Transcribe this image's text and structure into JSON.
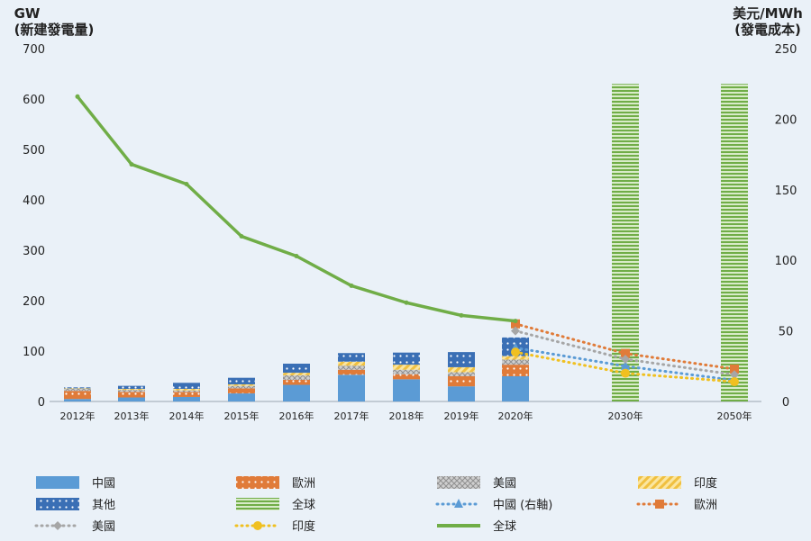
{
  "chart_data": {
    "type": "bar+line",
    "left_axis_title": [
      "GW",
      "(新建發電量)"
    ],
    "right_axis_title": [
      "美元/MWh",
      "(發電成本)"
    ],
    "left_ylim": [
      0,
      700
    ],
    "left_ticks": [
      0,
      100,
      200,
      300,
      400,
      500,
      600,
      700
    ],
    "right_ylim": [
      0,
      250
    ],
    "right_ticks": [
      0,
      50,
      100,
      150,
      200,
      250
    ],
    "categories": [
      "2012年",
      "2013年",
      "2014年",
      "2015年",
      "2016年",
      "2017年",
      "2018年",
      "2019年",
      "2020年",
      "2030年",
      "2050年"
    ],
    "stacked_bars": [
      {
        "name": "中國",
        "color": "#5b9bd5",
        "values": [
          5,
          8,
          9,
          16,
          33,
          53,
          44,
          30,
          50,
          null,
          null
        ]
      },
      {
        "name": "歐洲",
        "color": "#e07b39",
        "values": [
          16,
          11,
          10,
          10,
          10,
          10,
          10,
          20,
          23,
          null,
          null
        ]
      },
      {
        "name": "美國",
        "color": "#b0b0b0",
        "values": [
          4,
          4,
          3,
          5,
          9,
          8,
          9,
          8,
          10,
          null,
          null
        ]
      },
      {
        "name": "印度",
        "color": "#f0c040",
        "values": [
          1,
          2,
          3,
          3,
          5,
          8,
          10,
          10,
          7,
          null,
          null
        ]
      },
      {
        "name": "其他",
        "color": "#3a6fb5",
        "values": [
          2,
          6,
          12,
          13,
          18,
          17,
          24,
          30,
          37,
          null,
          null
        ]
      }
    ],
    "total_bars": {
      "name": "全球",
      "color": "#70ad47",
      "values": [
        null,
        null,
        null,
        null,
        null,
        null,
        null,
        null,
        null,
        630,
        630
      ]
    },
    "cost_lines": [
      {
        "name": "中國 (右軸)",
        "color": "#5b9bd5",
        "marker": "triangle",
        "values": [
          null,
          null,
          null,
          null,
          null,
          null,
          null,
          null,
          38,
          25,
          15
        ]
      },
      {
        "name": "歐洲",
        "color": "#e07b39",
        "marker": "square",
        "values": [
          null,
          null,
          null,
          null,
          null,
          null,
          null,
          null,
          55,
          34,
          23
        ]
      },
      {
        "name": "美國",
        "color": "#a6a6a6",
        "marker": "diamond",
        "values": [
          null,
          null,
          null,
          null,
          null,
          null,
          null,
          null,
          50,
          30,
          19
        ]
      },
      {
        "name": "印度",
        "color": "#f0c020",
        "marker": "circle",
        "values": [
          null,
          null,
          null,
          null,
          null,
          null,
          null,
          null,
          35,
          20,
          14
        ]
      },
      {
        "name": "全球",
        "color": "#70ad47",
        "marker": "none",
        "values": [
          216,
          168,
          154,
          117,
          103,
          82,
          70,
          61,
          57,
          null,
          null
        ]
      }
    ],
    "legend": [
      {
        "label": "中國",
        "swatch": "bar",
        "fill": "#5b9bd5",
        "pattern": "solid"
      },
      {
        "label": "歐洲",
        "swatch": "bar",
        "fill": "#e07b39",
        "pattern": "dots"
      },
      {
        "label": "美國",
        "swatch": "bar",
        "fill": "#b0b0b0",
        "pattern": "weave"
      },
      {
        "label": "印度",
        "swatch": "bar",
        "fill": "#f0c040",
        "pattern": "diagonal"
      },
      {
        "label": "其他",
        "swatch": "bar",
        "fill": "#3a6fb5",
        "pattern": "dots"
      },
      {
        "label": "全球",
        "swatch": "bar",
        "fill": "#70ad47",
        "pattern": "hlines"
      },
      {
        "label": "中國 (右軸)",
        "swatch": "line",
        "fill": "#5b9bd5",
        "marker": "triangle"
      },
      {
        "label": "歐洲",
        "swatch": "line",
        "fill": "#e07b39",
        "marker": "square"
      },
      {
        "label": "美國",
        "swatch": "line",
        "fill": "#a6a6a6",
        "marker": "diamond"
      },
      {
        "label": "印度",
        "swatch": "line",
        "fill": "#f0c020",
        "marker": "circle"
      },
      {
        "label": "全球",
        "swatch": "line",
        "fill": "#70ad47",
        "marker": "none",
        "solid": true
      }
    ]
  }
}
